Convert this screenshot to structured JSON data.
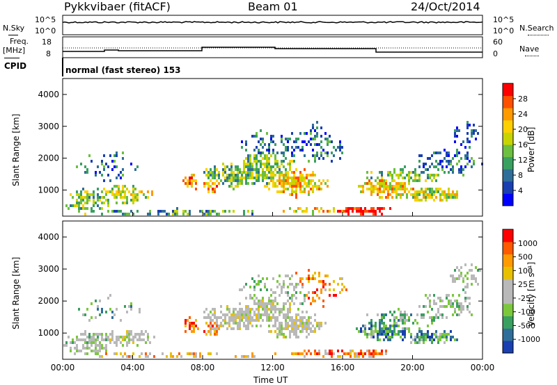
{
  "header": {
    "station": "Pykkvibaer (fitACF)",
    "beam": "Beam 01",
    "date": "24/Oct/2014"
  },
  "top_panels": {
    "nsky_label": "N.Sky",
    "nsearch_label": "N.Search",
    "noise_ticks_left": [
      "10^5",
      "10^0"
    ],
    "noise_ticks_right": [
      "10^5",
      "10^0"
    ],
    "freq_label": "Freq.",
    "freq_unit": "[MHz]",
    "freq_ticks": [
      "18",
      "8"
    ],
    "nave_label": "Nave",
    "nave_ticks": [
      "60",
      "0"
    ],
    "cpid_label": "CPID",
    "cpid_text": "normal (fast stereo) 153"
  },
  "chart_data": [
    {
      "type": "heatmap",
      "name": "power",
      "ylabel": "Slant Range [km]",
      "xlabel": "",
      "yticks": [
        "4000",
        "3000",
        "2000",
        "1000"
      ],
      "ylim": [
        180,
        4500
      ],
      "colorbar_label": "Power [dB]",
      "colorbar_ticks": [
        "28",
        "24",
        "20",
        "16",
        "12",
        "8",
        "4"
      ],
      "colorbar_colors": [
        "#0000ff",
        "#1a3fb0",
        "#2f6e9a",
        "#3aa060",
        "#6cbf3f",
        "#c8d400",
        "#ffd000",
        "#ff9a00",
        "#ff5000",
        "#ff0000"
      ]
    },
    {
      "type": "heatmap",
      "name": "velocity",
      "ylabel": "Slant Range [km]",
      "xlabel": "Time UT",
      "xticks": [
        "00:00",
        "04:00",
        "08:00",
        "12:00",
        "16:00",
        "20:00",
        "00:00"
      ],
      "yticks": [
        "4000",
        "3000",
        "2000",
        "1000"
      ],
      "ylim": [
        180,
        4500
      ],
      "colorbar_label": "Velocity [m s⁻¹]",
      "colorbar_ticks": [
        "1000",
        "500",
        "100",
        "25",
        "-25",
        "-100",
        "-500",
        "-1000"
      ],
      "colorbar_colors": [
        "#1a3fb0",
        "#2f6e9a",
        "#3aa060",
        "#7cc83c",
        "#b9b9b9",
        "#b9b9b9",
        "#e8c000",
        "#ff9a00",
        "#ff5a00",
        "#ff0000"
      ]
    }
  ]
}
